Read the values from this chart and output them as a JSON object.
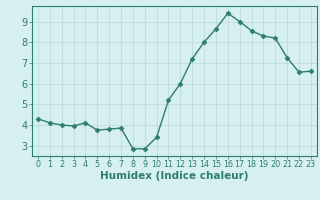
{
  "x": [
    0,
    1,
    2,
    3,
    4,
    5,
    6,
    7,
    8,
    9,
    10,
    11,
    12,
    13,
    14,
    15,
    16,
    17,
    18,
    19,
    20,
    21,
    22,
    23
  ],
  "y": [
    4.3,
    4.1,
    4.0,
    3.95,
    4.1,
    3.75,
    3.8,
    3.85,
    2.85,
    2.85,
    3.4,
    5.2,
    6.0,
    7.2,
    8.0,
    8.65,
    9.4,
    9.0,
    8.55,
    8.3,
    8.2,
    7.25,
    6.55,
    6.6
  ],
  "line_color": "#2e7d6e",
  "marker": "D",
  "markersize": 2.5,
  "linewidth": 1.0,
  "xlabel": "Humidex (Indice chaleur)",
  "xlim": [
    -0.5,
    23.5
  ],
  "ylim": [
    2.5,
    9.75
  ],
  "yticks": [
    3,
    4,
    5,
    6,
    7,
    8,
    9
  ],
  "xticks": [
    0,
    1,
    2,
    3,
    4,
    5,
    6,
    7,
    8,
    9,
    10,
    11,
    12,
    13,
    14,
    15,
    16,
    17,
    18,
    19,
    20,
    21,
    22,
    23
  ],
  "bg_color": "#d6f0ef",
  "grid_color": "#b8d8d5",
  "tick_color": "#2e7d6e",
  "label_color": "#2e7d6e",
  "xlabel_fontsize": 7.5,
  "ytick_fontsize": 7,
  "xtick_fontsize": 5.8
}
